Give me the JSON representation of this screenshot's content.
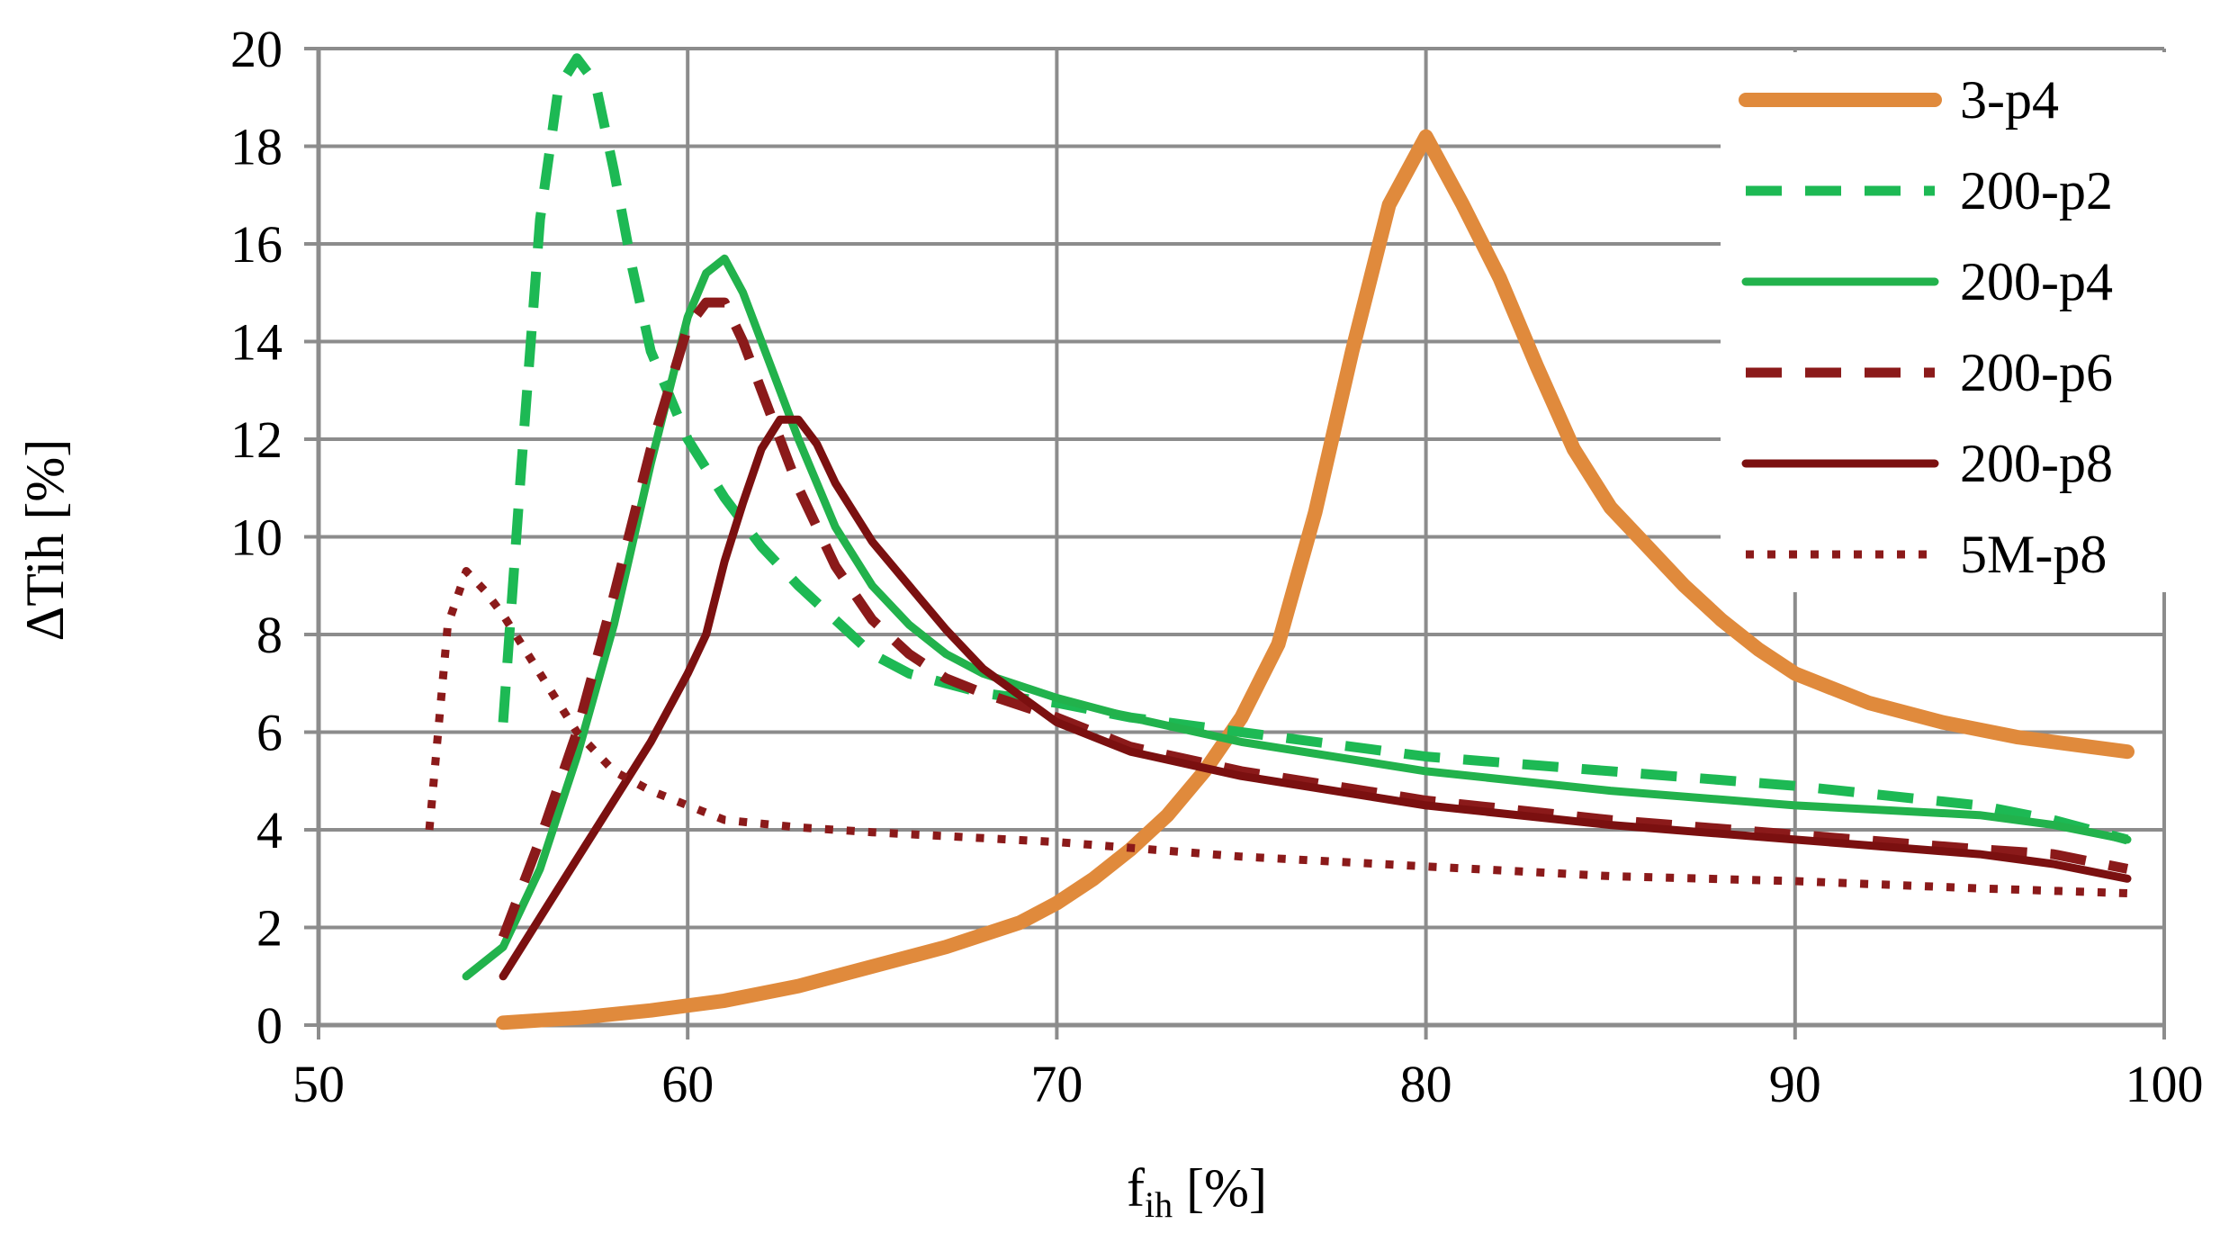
{
  "chart_data": {
    "type": "line",
    "title": "",
    "xlabel_main": "f",
    "xlabel_sub": "ih",
    "xlabel_unit": " [%]",
    "ylabel": "ΔTih  [%]",
    "xlim": [
      50,
      100
    ],
    "ylim": [
      0,
      20
    ],
    "x_ticks": [
      50,
      60,
      70,
      80,
      90,
      100
    ],
    "y_ticks": [
      0,
      2,
      4,
      6,
      8,
      10,
      12,
      14,
      16,
      18,
      20
    ],
    "grid": true,
    "legend_position": "top-right",
    "series": [
      {
        "name": "3-p4",
        "color": "#E08A3C",
        "style": "solid-thick",
        "x": [
          55,
          57,
          59,
          61,
          63,
          65,
          67,
          69,
          70,
          71,
          72,
          73,
          74,
          75,
          76,
          77,
          78,
          79,
          80,
          81,
          82,
          83,
          84,
          85,
          86,
          87,
          88,
          89,
          90,
          92,
          94,
          96,
          98,
          99
        ],
        "y": [
          0.05,
          0.15,
          0.3,
          0.5,
          0.8,
          1.2,
          1.6,
          2.1,
          2.5,
          3.0,
          3.6,
          4.3,
          5.2,
          6.3,
          7.8,
          10.5,
          13.8,
          16.8,
          18.2,
          16.8,
          15.3,
          13.5,
          11.8,
          10.6,
          9.8,
          9.0,
          8.3,
          7.7,
          7.2,
          6.6,
          6.2,
          5.9,
          5.7,
          5.6
        ]
      },
      {
        "name": "200-p2",
        "color": "#1DB954",
        "style": "dashed",
        "x": [
          55,
          55.5,
          56,
          56.5,
          57,
          57.5,
          58,
          58.5,
          59,
          60,
          61,
          62,
          63,
          64,
          65,
          66,
          67,
          68,
          70,
          72,
          75,
          80,
          85,
          90,
          95,
          97,
          99
        ],
        "y": [
          6.2,
          11.5,
          16.5,
          19.2,
          19.8,
          19.3,
          17.5,
          15.5,
          13.8,
          12.0,
          10.8,
          9.8,
          9.0,
          8.3,
          7.6,
          7.2,
          7.0,
          6.8,
          6.6,
          6.3,
          6.0,
          5.5,
          5.2,
          4.9,
          4.5,
          4.2,
          3.8
        ]
      },
      {
        "name": "200-p4",
        "color": "#22B24C",
        "style": "solid",
        "x": [
          54,
          55,
          56,
          57,
          58,
          59,
          60,
          60.5,
          61,
          61.5,
          62,
          63,
          64,
          65,
          66,
          67,
          68,
          70,
          72,
          75,
          80,
          85,
          90,
          95,
          97,
          99
        ],
        "y": [
          1.0,
          1.6,
          3.2,
          5.5,
          8.2,
          11.5,
          14.5,
          15.4,
          15.7,
          15.0,
          14.0,
          12.0,
          10.2,
          9.0,
          8.2,
          7.6,
          7.2,
          6.7,
          6.3,
          5.8,
          5.2,
          4.8,
          4.5,
          4.3,
          4.1,
          3.8
        ]
      },
      {
        "name": "200-p6",
        "color": "#8B1A1A",
        "style": "dashed",
        "x": [
          55,
          56,
          57,
          58,
          59,
          60,
          60.5,
          61,
          61.5,
          62,
          63,
          64,
          65,
          66,
          67,
          68,
          70,
          72,
          75,
          80,
          85,
          90,
          95,
          97,
          99
        ],
        "y": [
          1.8,
          3.8,
          6.0,
          8.8,
          11.8,
          14.3,
          14.8,
          14.8,
          14.0,
          13.0,
          11.0,
          9.4,
          8.3,
          7.6,
          7.1,
          6.8,
          6.3,
          5.7,
          5.2,
          4.6,
          4.2,
          3.9,
          3.6,
          3.5,
          3.2
        ]
      },
      {
        "name": "200-p8",
        "color": "#7B1010",
        "style": "solid",
        "x": [
          55,
          56,
          57,
          58,
          59,
          60,
          60.5,
          61,
          61.5,
          62,
          62.5,
          63,
          63.5,
          64,
          65,
          66,
          67,
          68,
          70,
          72,
          75,
          80,
          85,
          90,
          95,
          97,
          99
        ],
        "y": [
          1.0,
          2.2,
          3.4,
          4.6,
          5.8,
          7.2,
          8.0,
          9.5,
          10.7,
          11.8,
          12.4,
          12.4,
          11.9,
          11.1,
          9.9,
          9.0,
          8.1,
          7.3,
          6.2,
          5.6,
          5.1,
          4.5,
          4.1,
          3.8,
          3.5,
          3.3,
          3.0
        ]
      },
      {
        "name": "5M-p8",
        "color": "#8B1A1A",
        "style": "dotted",
        "x": [
          53,
          53.5,
          54,
          54.5,
          55,
          56,
          57,
          58,
          59,
          60,
          61,
          63,
          65,
          70,
          75,
          80,
          85,
          90,
          95,
          99
        ],
        "y": [
          4.0,
          8.2,
          9.3,
          8.9,
          8.4,
          7.2,
          6.0,
          5.2,
          4.8,
          4.5,
          4.2,
          4.05,
          3.95,
          3.75,
          3.45,
          3.25,
          3.05,
          2.95,
          2.8,
          2.7
        ]
      }
    ]
  }
}
